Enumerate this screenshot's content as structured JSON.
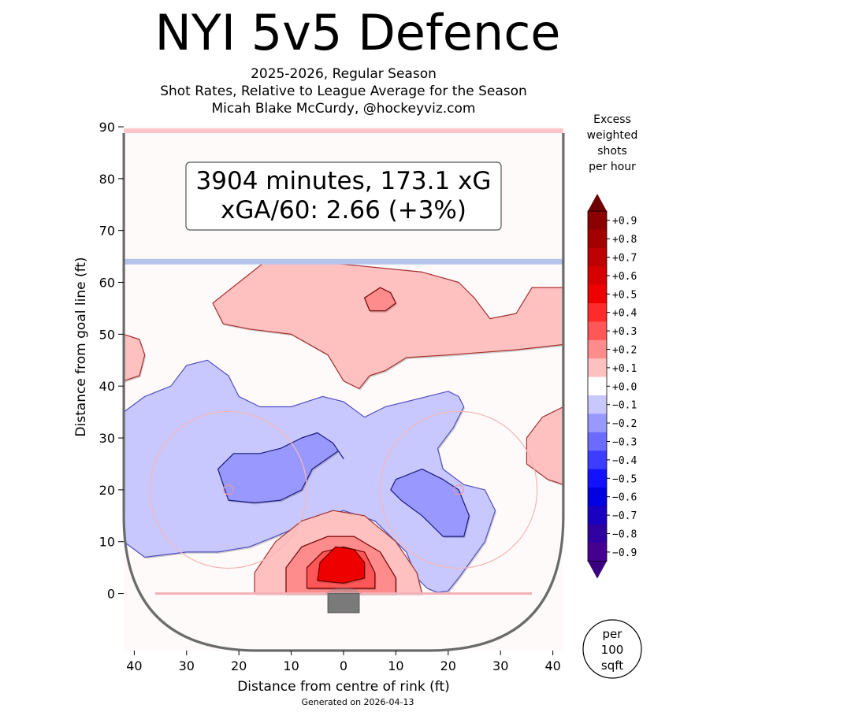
{
  "header": {
    "title": "NYI 5v5 Defence",
    "subtitle_lines": [
      "2025-2026, Regular Season",
      "Shot Rates, Relative to League Average for the Season",
      "Micah Blake McCurdy, @hockeyviz.com"
    ]
  },
  "summary_box": {
    "line1": "3904 minutes, 173.1 xG",
    "line2": "xGA/60: 2.66 (+3%)"
  },
  "footer": {
    "generated": "Generated on 2026-04-13"
  },
  "colorbar": {
    "title_lines": [
      "Excess",
      "weighted",
      "shots",
      "per hour"
    ],
    "labels": [
      "+0.9",
      "+0.8",
      "+0.7",
      "+0.6",
      "+0.5",
      "+0.4",
      "+0.3",
      "+0.2",
      "+0.1",
      "+0.0",
      "−0.1",
      "−0.2",
      "−0.3",
      "−0.4",
      "−0.5",
      "−0.6",
      "−0.7",
      "−0.8",
      "−0.9"
    ],
    "colors": [
      "#8b0000",
      "#a30000",
      "#bd0000",
      "#d60000",
      "#ee0000",
      "#ff2a2a",
      "#ff5757",
      "#ff8c8c",
      "#ffc0c0",
      "#ffffff",
      "#c8c8ff",
      "#9898ff",
      "#6b6bff",
      "#3d3dff",
      "#1212ff",
      "#0000e0",
      "#1a00c0",
      "#3000a0",
      "#450090"
    ],
    "unit_lines": [
      "per",
      "100",
      "sqft"
    ]
  },
  "chart_data": {
    "type": "heatmap",
    "title": "NYI 5v5 Defence",
    "xlabel": "Distance from centre of rink (ft)",
    "ylabel": "Distance from goal line (ft)",
    "xlim": [
      -42,
      42
    ],
    "ylim": [
      -11,
      90
    ],
    "x_ticks": [
      -40,
      -30,
      -20,
      -10,
      0,
      10,
      20,
      30,
      40
    ],
    "x_tick_labels": [
      "40",
      "30",
      "20",
      "10",
      "0",
      "10",
      "20",
      "30",
      "40"
    ],
    "y_ticks": [
      0,
      10,
      20,
      30,
      40,
      50,
      60,
      70,
      80,
      90
    ],
    "y_tick_labels": [
      "0",
      "10",
      "20",
      "30",
      "40",
      "50",
      "60",
      "70",
      "80",
      "90"
    ],
    "rink": {
      "blue_line_y": 64,
      "goal_line_y": 0,
      "top_line_y": 89,
      "faceoff_circles": [
        {
          "x": -22,
          "y": 20,
          "r": 15
        },
        {
          "x": 22,
          "y": 20,
          "r": 15
        }
      ],
      "net": {
        "x0": -3,
        "x1": 3,
        "y0": -3.7,
        "y1": 0
      }
    },
    "regions": [
      {
        "name": "point-high-excess",
        "level": 0.1,
        "points": [
          [
            -20,
            60
          ],
          [
            -15,
            64
          ],
          [
            -5,
            64
          ],
          [
            5,
            63
          ],
          [
            15,
            62
          ],
          [
            22,
            60
          ],
          [
            25,
            57
          ],
          [
            28,
            53
          ],
          [
            33,
            54
          ],
          [
            36,
            59
          ],
          [
            42,
            59
          ],
          [
            42,
            48
          ],
          [
            33,
            47
          ],
          [
            20,
            46
          ],
          [
            12,
            45.5
          ],
          [
            8,
            43
          ],
          [
            5,
            42
          ],
          [
            3,
            39.5
          ],
          [
            0,
            41
          ],
          [
            -3,
            46
          ],
          [
            -10,
            50
          ],
          [
            -18,
            51
          ],
          [
            -23,
            52
          ],
          [
            -25,
            56
          ]
        ]
      },
      {
        "name": "point-spot-excess",
        "level": 0.2,
        "points": [
          [
            4,
            57
          ],
          [
            7,
            59
          ],
          [
            9,
            58
          ],
          [
            10,
            56
          ],
          [
            8,
            54.5
          ],
          [
            5,
            54.5
          ]
        ]
      },
      {
        "name": "left-edge-excess",
        "level": 0.1,
        "points": [
          [
            -42,
            50
          ],
          [
            -39,
            49
          ],
          [
            -38,
            46
          ],
          [
            -39,
            42
          ],
          [
            -42,
            41
          ]
        ]
      },
      {
        "name": "right-circle-excess",
        "level": 0.1,
        "points": [
          [
            42,
            36
          ],
          [
            38,
            34
          ],
          [
            35,
            30
          ],
          [
            35,
            25
          ],
          [
            39,
            22
          ],
          [
            42,
            21
          ]
        ]
      },
      {
        "name": "midrange-deficit",
        "level": -0.1,
        "points": [
          [
            -42,
            35
          ],
          [
            -38,
            38
          ],
          [
            -33,
            40
          ],
          [
            -30,
            44
          ],
          [
            -26,
            45
          ],
          [
            -22,
            42
          ],
          [
            -20,
            38
          ],
          [
            -16,
            36
          ],
          [
            -10,
            36
          ],
          [
            -4,
            38
          ],
          [
            0,
            37
          ],
          [
            4,
            34
          ],
          [
            8,
            36
          ],
          [
            12,
            37
          ],
          [
            16,
            38
          ],
          [
            20,
            39
          ],
          [
            22,
            38
          ],
          [
            23,
            36
          ],
          [
            21,
            32
          ],
          [
            18,
            28
          ],
          [
            19,
            24
          ],
          [
            23,
            21
          ],
          [
            27,
            20
          ],
          [
            29,
            16
          ],
          [
            27,
            10
          ],
          [
            22,
            3
          ],
          [
            20,
            0.5
          ],
          [
            18,
            0.2
          ],
          [
            16,
            1
          ],
          [
            14,
            3
          ],
          [
            12,
            8
          ],
          [
            6,
            14
          ],
          [
            0,
            16
          ],
          [
            -6,
            14
          ],
          [
            -13,
            11
          ],
          [
            -18,
            9
          ],
          [
            -24,
            8
          ],
          [
            -30,
            8
          ],
          [
            -38,
            7
          ],
          [
            -42,
            10
          ]
        ]
      },
      {
        "name": "left-slot-deficit",
        "level": -0.2,
        "points": [
          [
            -24,
            24
          ],
          [
            -22,
            18
          ],
          [
            -17,
            17.5
          ],
          [
            -12,
            18
          ],
          [
            -8,
            20
          ],
          [
            -6,
            24
          ],
          [
            -1,
            27.5
          ],
          [
            0,
            26
          ],
          [
            -2,
            29
          ],
          [
            -5,
            31
          ],
          [
            -8,
            30
          ],
          [
            -10,
            29
          ],
          [
            -12,
            28
          ],
          [
            -16,
            27
          ],
          [
            -21,
            27
          ]
        ]
      },
      {
        "name": "right-slot-deficit",
        "level": -0.2,
        "points": [
          [
            10,
            22
          ],
          [
            15,
            24
          ],
          [
            19,
            22
          ],
          [
            22,
            20
          ],
          [
            24,
            15
          ],
          [
            23,
            11
          ],
          [
            19,
            11
          ],
          [
            15,
            15
          ],
          [
            11,
            18
          ],
          [
            9,
            20
          ]
        ]
      },
      {
        "name": "crease-excess-1",
        "level": 0.1,
        "points": [
          [
            -17,
            0
          ],
          [
            -17,
            4
          ],
          [
            -13,
            10
          ],
          [
            -8,
            14
          ],
          [
            -2,
            16
          ],
          [
            4,
            15
          ],
          [
            10,
            10
          ],
          [
            14,
            4
          ],
          [
            15,
            0
          ]
        ]
      },
      {
        "name": "crease-excess-2",
        "level": 0.2,
        "points": [
          [
            -11,
            0
          ],
          [
            -11,
            5
          ],
          [
            -8,
            9
          ],
          [
            -3,
            11
          ],
          [
            2,
            11
          ],
          [
            7,
            8
          ],
          [
            10,
            3
          ],
          [
            10,
            0
          ]
        ]
      },
      {
        "name": "crease-excess-3",
        "level": 0.3,
        "points": [
          [
            -7,
            1
          ],
          [
            -7,
            5
          ],
          [
            -4,
            8
          ],
          [
            0,
            9
          ],
          [
            4,
            8
          ],
          [
            6,
            4
          ],
          [
            6,
            1
          ]
        ]
      },
      {
        "name": "crease-excess-4",
        "level": 0.5,
        "points": [
          [
            -5,
            2.5
          ],
          [
            -4.5,
            6
          ],
          [
            -1.5,
            9
          ],
          [
            2,
            8.5
          ],
          [
            4,
            6
          ],
          [
            4,
            3
          ],
          [
            0,
            2
          ]
        ]
      }
    ]
  }
}
